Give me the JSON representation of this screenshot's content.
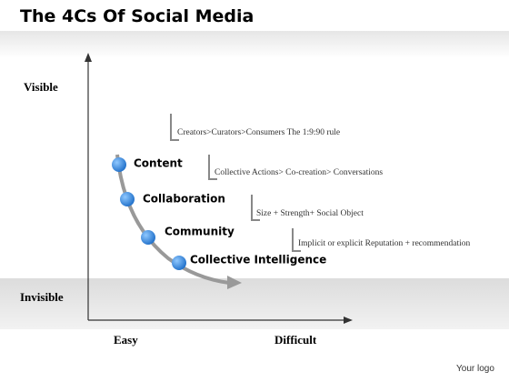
{
  "title": "The 4Cs Of Social Media",
  "axes": {
    "top": "Visible",
    "bottom": "Invisible",
    "left": "Easy",
    "right": "Difficult"
  },
  "items": [
    {
      "label": "Content",
      "description": "Creators>Curators>Consumers The 1:9:90 rule"
    },
    {
      "label": "Collaboration",
      "description": "Collective Actions> Co-creation> Conversations"
    },
    {
      "label": "Community",
      "description": "Size + Strength+ Social Object"
    },
    {
      "label": "Collective Intelligence",
      "description": "Implicit or explicit Reputation + recommendation"
    }
  ],
  "logo": "Your logo"
}
